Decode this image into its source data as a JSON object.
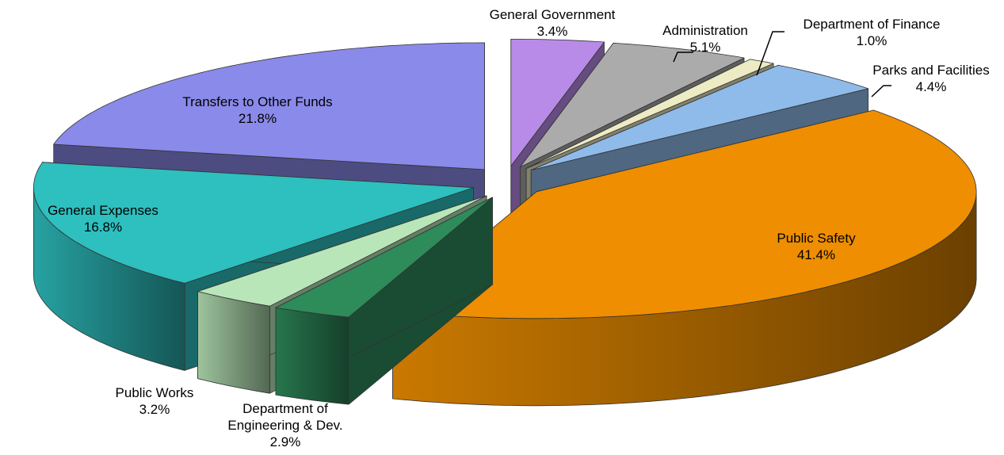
{
  "chart_data": {
    "type": "pie3d",
    "categories": [
      "General Government",
      "Administration",
      "Department of Finance",
      "Parks and Facilities",
      "Public Safety",
      "Department of Engineering & Dev.",
      "Public Works",
      "General Expenses",
      "Transfers to Other Funds"
    ],
    "values": [
      3.4,
      5.1,
      1.0,
      4.4,
      41.4,
      2.9,
      3.2,
      16.8,
      21.8
    ],
    "value_labels": [
      "3.4%",
      "5.1%",
      "1.0%",
      "4.4%",
      "41.4%",
      "2.9%",
      "3.2%",
      "16.8%",
      "21.8%"
    ],
    "colors": [
      "#b98be8",
      "#ababab",
      "#ecebc4",
      "#8fbbea",
      "#ee8e00",
      "#2e8b5a",
      "#b9e6b9",
      "#2ebfbf",
      "#8a8aea"
    ]
  }
}
